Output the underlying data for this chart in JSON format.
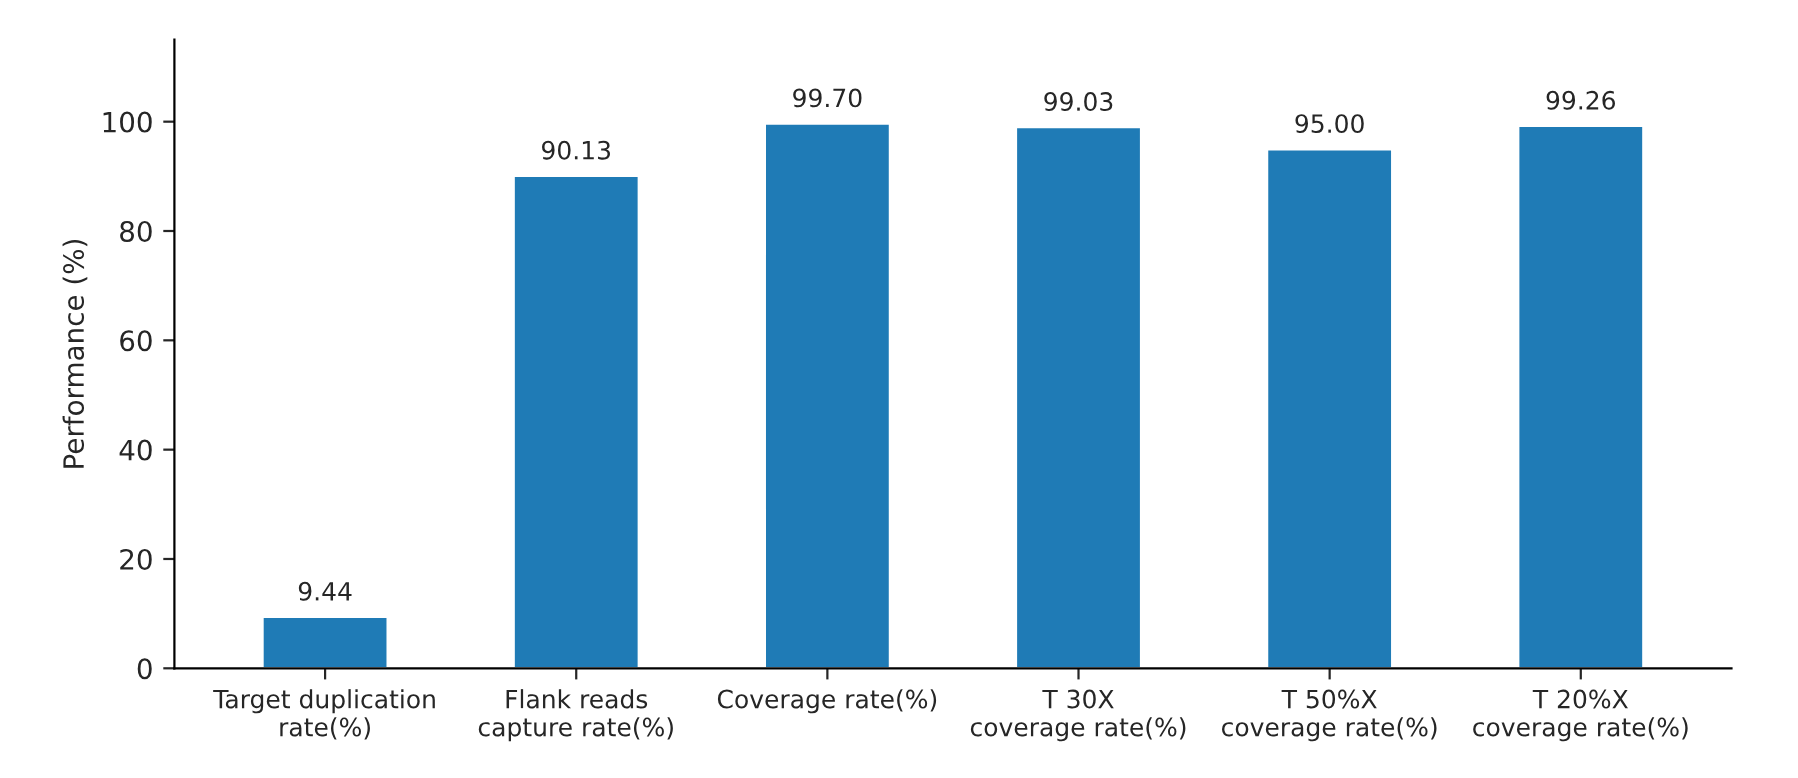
{
  "chart_data": {
    "type": "bar",
    "ylabel": "Performance (%)",
    "categories": [
      "Target duplication\nrate(%)",
      "Flank reads\ncapture rate(%)",
      "Coverage rate(%)",
      "T 30X\ncoverage rate(%)",
      "T 50%X\ncoverage rate(%)",
      "T 20%X\ncoverage rate(%)"
    ],
    "values": [
      9.44,
      90.13,
      99.7,
      99.03,
      95.0,
      99.26
    ],
    "color": "#1f7bb6",
    "ylim": [
      0,
      115
    ],
    "yticks": [
      0,
      20,
      40,
      60,
      80,
      100
    ],
    "value_labels": [
      "9.44",
      "90.13",
      "99.70",
      "99.03",
      "95.00",
      "99.26"
    ],
    "grid": false,
    "legend": false
  }
}
